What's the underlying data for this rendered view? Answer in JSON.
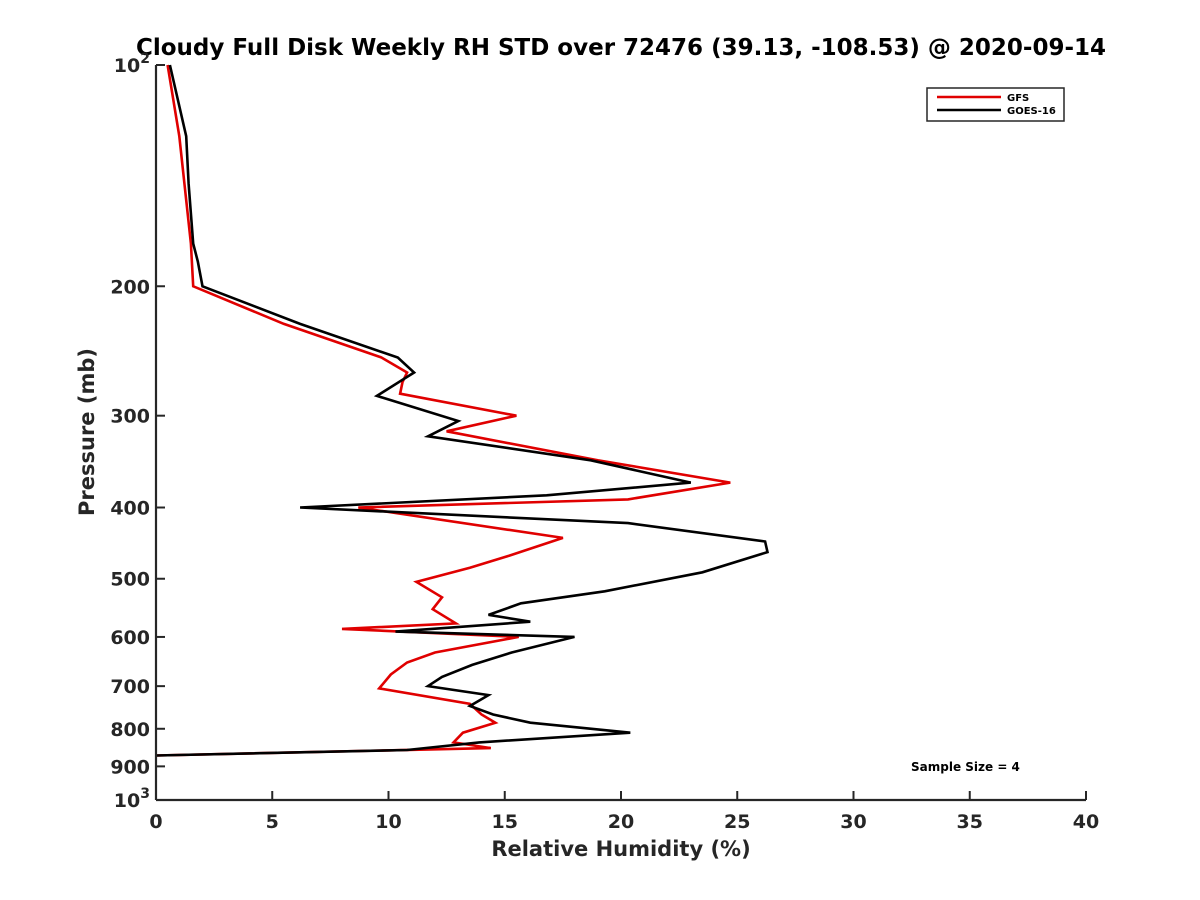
{
  "chart_data": {
    "type": "line",
    "title": "Cloudy Full Disk Weekly RH STD over 72476 (39.13, -108.53) @ 2020-09-14",
    "xlabel": "Relative Humidity (%)",
    "ylabel": "Pressure (mb)",
    "xlim": [
      0,
      40
    ],
    "ylim": [
      100,
      1000
    ],
    "y_scale": "log",
    "y_reversed": true,
    "xticks": [
      0,
      5,
      10,
      15,
      20,
      25,
      30,
      35,
      40
    ],
    "yticks": [
      {
        "value": 100,
        "base": "10",
        "exp": "2"
      },
      {
        "value": 200,
        "label": "200"
      },
      {
        "value": 300,
        "label": "300"
      },
      {
        "value": 400,
        "label": "400"
      },
      {
        "value": 500,
        "label": "500"
      },
      {
        "value": 600,
        "label": "600"
      },
      {
        "value": 700,
        "label": "700"
      },
      {
        "value": 800,
        "label": "800"
      },
      {
        "value": 900,
        "label": "900"
      },
      {
        "value": 1000,
        "base": "10",
        "exp": "3"
      }
    ],
    "grid": false,
    "legend": "top-right",
    "annotation": "Sample Size = 4",
    "series": [
      {
        "name": "GFS",
        "color": "#e00000",
        "points": [
          [
            0.5,
            100
          ],
          [
            1.0,
            125
          ],
          [
            1.5,
            175
          ],
          [
            1.6,
            200
          ],
          [
            5.5,
            225
          ],
          [
            9.7,
            250
          ],
          [
            10.8,
            262
          ],
          [
            10.6,
            270
          ],
          [
            10.5,
            280
          ],
          [
            15.5,
            300
          ],
          [
            12.5,
            315
          ],
          [
            19.0,
            345
          ],
          [
            24.7,
            370
          ],
          [
            20.3,
            390
          ],
          [
            8.7,
            400
          ],
          [
            17.5,
            440
          ],
          [
            15.2,
            465
          ],
          [
            13.5,
            483
          ],
          [
            11.2,
            505
          ],
          [
            12.3,
            530
          ],
          [
            11.9,
            550
          ],
          [
            12.9,
            575
          ],
          [
            8.0,
            585
          ],
          [
            15.6,
            600
          ],
          [
            12.0,
            630
          ],
          [
            10.8,
            650
          ],
          [
            10.1,
            675
          ],
          [
            9.6,
            705
          ],
          [
            13.5,
            740
          ],
          [
            14.0,
            765
          ],
          [
            14.6,
            785
          ],
          [
            13.2,
            810
          ],
          [
            12.8,
            835
          ],
          [
            14.4,
            850
          ],
          [
            0.0,
            870
          ]
        ]
      },
      {
        "name": "GOES-16",
        "color": "#000000",
        "points": [
          [
            0.6,
            100
          ],
          [
            1.3,
            125
          ],
          [
            1.4,
            145
          ],
          [
            1.6,
            175
          ],
          [
            1.8,
            185
          ],
          [
            2.0,
            200
          ],
          [
            6.2,
            225
          ],
          [
            10.4,
            250
          ],
          [
            11.1,
            262
          ],
          [
            9.5,
            282
          ],
          [
            13.0,
            305
          ],
          [
            11.7,
            320
          ],
          [
            18.7,
            345
          ],
          [
            23.0,
            370
          ],
          [
            16.8,
            385
          ],
          [
            6.2,
            400
          ],
          [
            20.3,
            420
          ],
          [
            26.2,
            445
          ],
          [
            26.3,
            460
          ],
          [
            23.5,
            490
          ],
          [
            19.3,
            520
          ],
          [
            15.7,
            540
          ],
          [
            14.3,
            560
          ],
          [
            16.1,
            572
          ],
          [
            10.3,
            590
          ],
          [
            18.0,
            600
          ],
          [
            15.3,
            630
          ],
          [
            13.6,
            655
          ],
          [
            12.3,
            680
          ],
          [
            11.7,
            700
          ],
          [
            14.3,
            720
          ],
          [
            13.5,
            745
          ],
          [
            14.5,
            765
          ],
          [
            16.1,
            785
          ],
          [
            20.4,
            810
          ],
          [
            13.9,
            835
          ],
          [
            10.8,
            855
          ],
          [
            0.0,
            870
          ]
        ]
      }
    ]
  }
}
